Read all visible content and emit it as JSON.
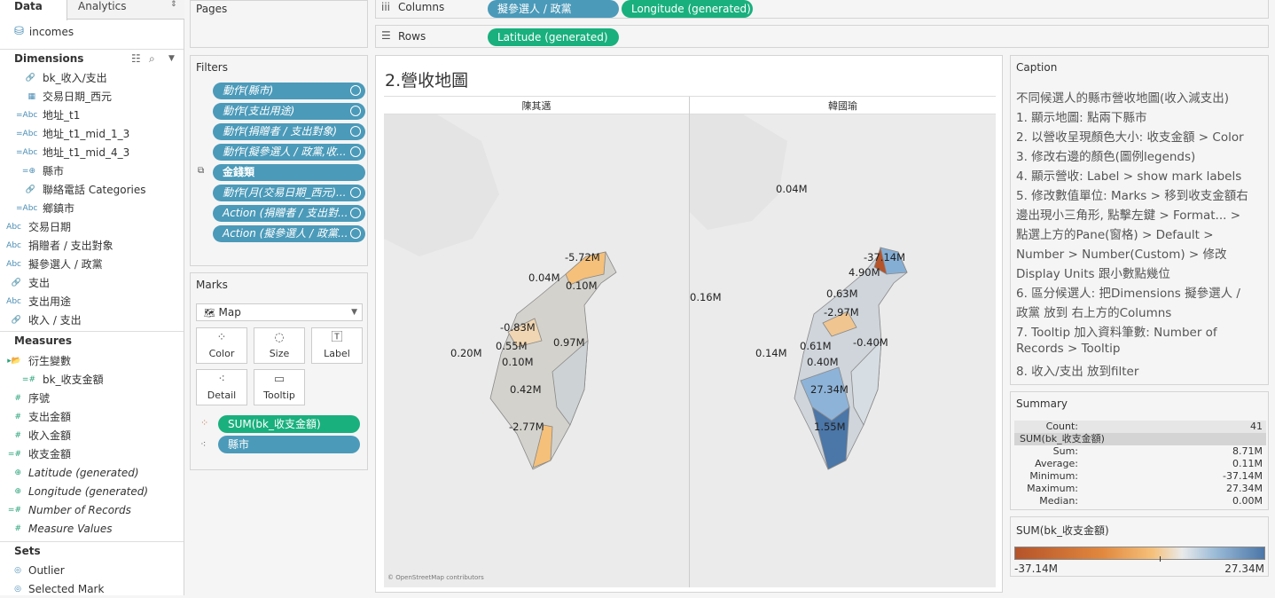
{
  "tabs": {
    "data": "Data",
    "analytics": "Analytics"
  },
  "datasource": "incomes",
  "dimensions_header": "Dimensions",
  "dimensions": [
    {
      "icon": "paperclip-icon",
      "glyph": "🔗",
      "name": "bk_收入/支出",
      "indent": true
    },
    {
      "icon": "calendar-icon",
      "glyph": "▦",
      "name": "交易日期_西元",
      "indent": true
    },
    {
      "icon": "abc-icon",
      "glyph": "=Abc",
      "name": "地址_t1",
      "indent": true
    },
    {
      "icon": "abc-icon",
      "glyph": "=Abc",
      "name": "地址_t1_mid_1_3",
      "indent": true
    },
    {
      "icon": "abc-icon",
      "glyph": "=Abc",
      "name": "地址_t1_mid_4_3",
      "indent": true
    },
    {
      "icon": "globe-icon",
      "glyph": "=⊕",
      "name": "縣市",
      "indent": true
    },
    {
      "icon": "paperclip-icon",
      "glyph": "🔗",
      "name": "聯絡電話 Categories",
      "indent": true
    },
    {
      "icon": "abc-icon",
      "glyph": "=Abc",
      "name": "鄉鎮市",
      "indent": true
    },
    {
      "icon": "abc-icon",
      "glyph": "Abc",
      "name": "交易日期",
      "indent": false
    },
    {
      "icon": "abc-icon",
      "glyph": "Abc",
      "name": "捐贈者 / 支出對象",
      "indent": false
    },
    {
      "icon": "abc-icon",
      "glyph": "Abc",
      "name": "擬參選人 / 政黨",
      "indent": false
    },
    {
      "icon": "paperclip-icon",
      "glyph": "🔗",
      "name": "支出",
      "indent": false
    },
    {
      "icon": "abc-icon",
      "glyph": "Abc",
      "name": "支出用途",
      "indent": false
    },
    {
      "icon": "paperclip-icon",
      "glyph": "🔗",
      "name": "收入 / 支出",
      "indent": false
    }
  ],
  "measures_header": "Measures",
  "measures": [
    {
      "icon": "folder-icon",
      "glyph": "▸📂",
      "name": "衍生變數",
      "italic": false,
      "indent": false
    },
    {
      "icon": "number-icon",
      "glyph": "=#",
      "name": "bk_收支金額",
      "italic": false,
      "indent": true
    },
    {
      "icon": "number-icon",
      "glyph": "#",
      "name": "序號",
      "italic": false,
      "indent": false
    },
    {
      "icon": "number-icon",
      "glyph": "#",
      "name": "支出金額",
      "italic": false,
      "indent": false
    },
    {
      "icon": "number-icon",
      "glyph": "#",
      "name": "收入金額",
      "italic": false,
      "indent": false
    },
    {
      "icon": "number-icon",
      "glyph": "=#",
      "name": "收支金額",
      "italic": false,
      "indent": false
    },
    {
      "icon": "globe-icon",
      "glyph": "⊕",
      "name": "Latitude (generated)",
      "italic": true,
      "indent": false
    },
    {
      "icon": "globe-icon",
      "glyph": "⊕",
      "name": "Longitude (generated)",
      "italic": true,
      "indent": false
    },
    {
      "icon": "number-icon",
      "glyph": "=#",
      "name": "Number of Records",
      "italic": true,
      "indent": false
    },
    {
      "icon": "number-icon",
      "glyph": "#",
      "name": "Measure Values",
      "italic": true,
      "indent": false
    }
  ],
  "sets_header": "Sets",
  "sets": [
    {
      "name": "Outlier"
    },
    {
      "name": "Selected Mark"
    }
  ],
  "pages_title": "Pages",
  "filters_title": "Filters",
  "filters": [
    "動作(縣市)",
    "動作(支出用途)",
    "動作(捐贈者 / 支出對象)",
    "動作(擬參選人 / 政黨,收...",
    "金錢類",
    "動作(月(交易日期_西元)...",
    "Action (捐贈者 / 支出對...",
    "Action (擬參選人 / 政黨..."
  ],
  "marks_title": "Marks",
  "mark_type": "Map",
  "mark_buttons": [
    "Color",
    "Size",
    "Label",
    "Detail",
    "Tooltip"
  ],
  "mark_pills": [
    "SUM(bk_收支金額)",
    "縣市"
  ],
  "columns_label": "Columns",
  "columns_pills": [
    "擬參選人 / 政黨",
    "Longitude (generated)"
  ],
  "rows_label": "Rows",
  "rows_pills": [
    "Latitude (generated)"
  ],
  "sheet_title": "2.營收地圖",
  "panes": [
    "陳其邁",
    "韓國瑜"
  ],
  "attribution": "© OpenStreetMap contributors",
  "left_labels": [
    "-5.72M",
    "0.04M",
    "0.10M",
    "-0.83M",
    "0.55M",
    "0.97M",
    "0.20M",
    "0.10M",
    "0.42M",
    "-2.77M"
  ],
  "right_labels": [
    "0.04M",
    "-37.14M",
    "4.90M",
    "0.16M",
    "0.63M",
    "-2.97M",
    "0.61M",
    "-0.40M",
    "0.14M",
    "0.40M",
    "27.34M",
    "1.55M"
  ],
  "caption_title": "Caption",
  "caption_lines": [
    "不同候選人的縣市營收地圖(收入減支出)",
    "1. 顯示地圖: 點兩下縣市",
    "2. 以營收呈現顏色大小: 收支金額 > Color",
    "3. 修改右邊的顏色(圖例legends)",
    "4. 顯示營收: Label > show mark labels",
    "5. 修改數值單位: Marks > 移到收支金額右",
    "邊出現小三角形, 點擊左鍵 > Format... >",
    "點選上方的Pane(窗格) > Default >",
    "Number > Number(Custom) > 修改",
    "Display Units 跟小數點幾位",
    "6. 區分候選人: 把Dimensions 擬參選人 /",
    "政黨 放到 右上方的Columns",
    "7. Tooltip 加入資料筆數: Number of",
    "Records > Tooltip",
    "8. 收入/支出 放到filter"
  ],
  "summary_title": "Summary",
  "summary": {
    "count_label": "Count:",
    "count": "41",
    "measure": "SUM(bk_收支金額)",
    "rows": [
      [
        "Sum:",
        "8.71M"
      ],
      [
        "Average:",
        "0.11M"
      ],
      [
        "Minimum:",
        "-37.14M"
      ],
      [
        "Maximum:",
        "27.34M"
      ],
      [
        "Median:",
        "0.00M"
      ]
    ]
  },
  "legend_title": "SUM(bk_收支金額)",
  "legend_min": "-37.14M",
  "legend_max": "27.34M",
  "colors": {
    "pill_blue": "#4b9ab9",
    "pill_green": "#19b07e",
    "neg": "#b5532a",
    "pos": "#4b76a8"
  }
}
